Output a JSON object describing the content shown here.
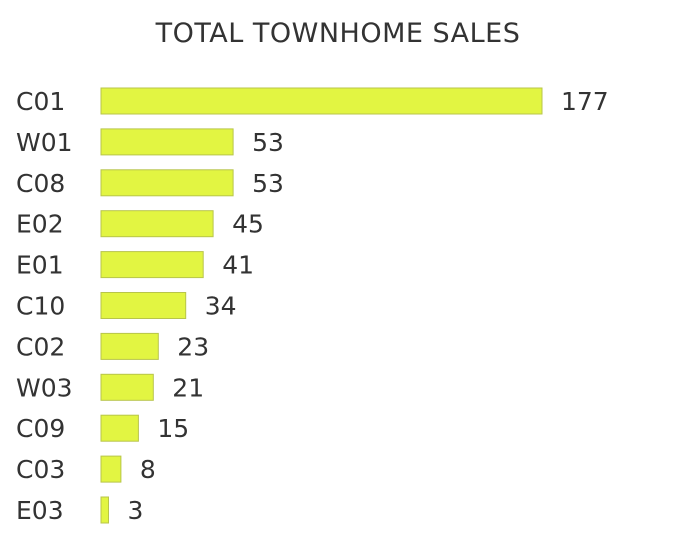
{
  "chart_data": {
    "type": "bar",
    "orientation": "horizontal",
    "title": "TOTAL TOWNHOME SALES",
    "categories": [
      "C01",
      "W01",
      "C08",
      "E02",
      "E01",
      "C10",
      "C02",
      "W03",
      "C09",
      "C03",
      "E03"
    ],
    "values": [
      177,
      53,
      53,
      45,
      41,
      34,
      23,
      21,
      15,
      8,
      3
    ],
    "value_labels": [
      "177",
      "53",
      "53",
      "45",
      "41",
      "34",
      "23",
      "21",
      "15",
      "8",
      "3"
    ],
    "bar_color": "#e2f542",
    "grid": false,
    "legend": "none",
    "xlim": [
      0,
      177
    ]
  }
}
